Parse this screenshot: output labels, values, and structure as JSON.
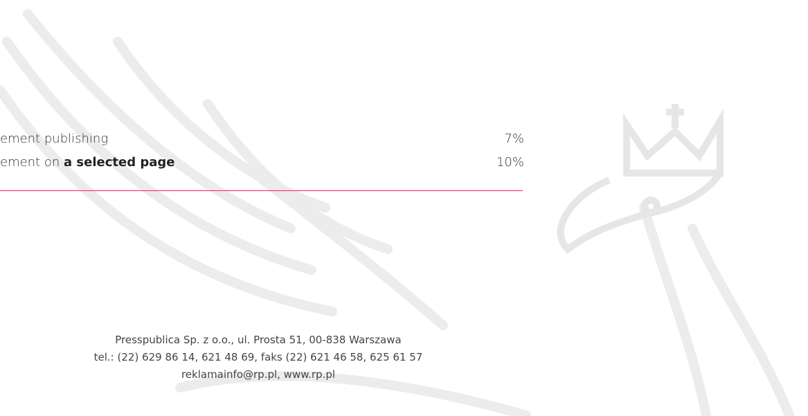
{
  "table": {
    "rows": [
      {
        "label": "ement publishing",
        "value": "7%"
      },
      {
        "label": "ement on ",
        "label_bold": "a selected page",
        "value": "10%"
      }
    ]
  },
  "footer": {
    "lines": [
      "Presspublica Sp. z o.o., ul. Prosta 51, 00-838 Warszawa",
      "tel.: (22) 629 86 14, 621 48 69, faks (22) 621 46 58, 625 61 57",
      "reklamainfo@rp.pl, www.rp.pl"
    ]
  }
}
